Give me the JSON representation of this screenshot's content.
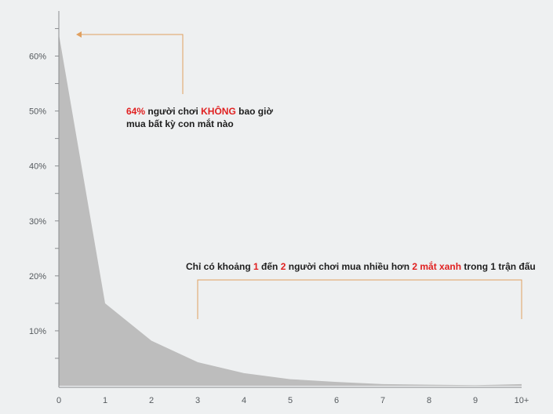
{
  "chart_data": {
    "type": "area",
    "x_categories": [
      "0",
      "1",
      "2",
      "3",
      "4",
      "5",
      "6",
      "7",
      "8",
      "9",
      "10+"
    ],
    "values": [
      64,
      15,
      8.2,
      4.3,
      2.3,
      1.2,
      0.7,
      0.3,
      0.2,
      0.1,
      0.3
    ],
    "ylim": [
      0,
      70
    ],
    "y_ticks": [
      10,
      20,
      30,
      40,
      50,
      60
    ],
    "y_tick_labels": [
      "10%",
      "20%",
      "30%",
      "40%",
      "50%",
      "60%"
    ],
    "title": "",
    "xlabel": "",
    "ylabel": "",
    "colors": {
      "area": "#bdbdbd",
      "axis": "#8a8d90",
      "bracket": "#e0a060",
      "highlight": "#e02020",
      "background": "#eef0f1"
    }
  },
  "annotations": {
    "top": {
      "pct": "64%",
      "text1": " người chơi ",
      "highlight": "KHÔNG",
      "text2": " bao giờ",
      "line2": "mua bất kỳ con mắt nào"
    },
    "bottom": {
      "t1": "Chỉ có khoảng ",
      "h1": "1",
      "t2": " đến ",
      "h2": "2",
      "t3": " người chơi mua nhiều hơn ",
      "h3": "2 mắt xanh",
      "t4": " trong ",
      "h4": "1",
      "t5": " trận đấu"
    }
  }
}
